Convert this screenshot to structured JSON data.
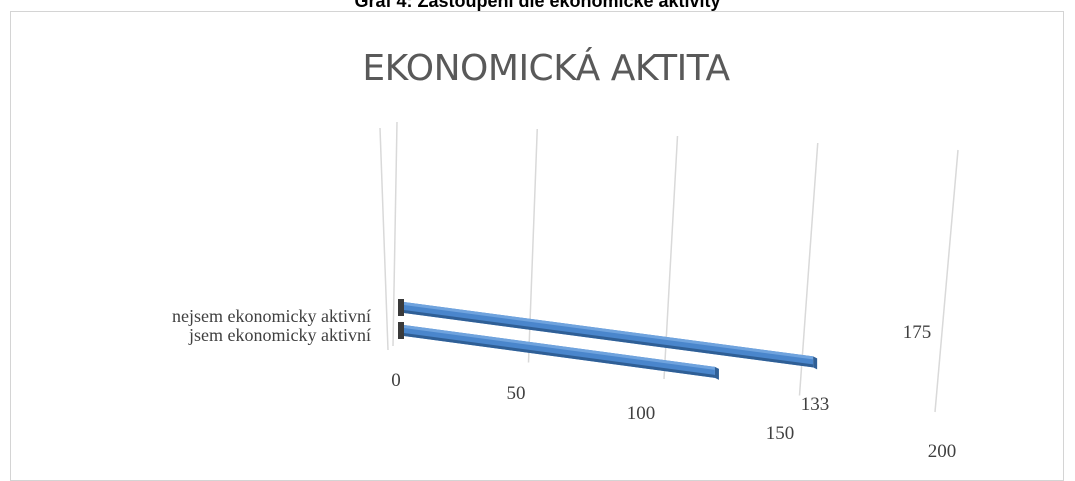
{
  "caption": "Graf 4: Zastoupení dle ekonomické aktivity",
  "chart_data": {
    "type": "bar",
    "orientation": "horizontal",
    "style": "3d-perspective",
    "title": "EKONOMICKÁ AKTITA",
    "categories": [
      "jsem ekonomicky aktivní",
      "nejsem ekonomicky aktivní"
    ],
    "values": [
      133,
      175
    ],
    "data_labels": [
      "133",
      "175"
    ],
    "x_ticks": [
      "0",
      "50",
      "100",
      "150",
      "200"
    ],
    "xlim": [
      0,
      200
    ],
    "grid": true,
    "legend": "none",
    "colors": {
      "bar": "#4a86cc",
      "bar_top": "#6fa3de",
      "bar_side": "#2f5f96",
      "grid": "#d9d9d9"
    }
  }
}
